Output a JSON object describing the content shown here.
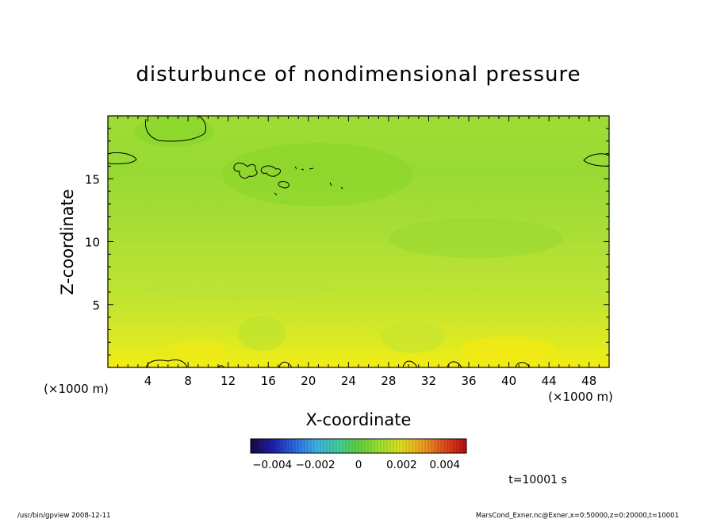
{
  "chart_data": {
    "type": "heatmap",
    "title": "disturbunce of nondimensional pressure",
    "xlabel": "X-coordinate",
    "ylabel": "Z-coordinate",
    "x_unit_left": "(×1000 m)",
    "x_unit_right": "(×1000 m)",
    "xlim": [
      0,
      50
    ],
    "ylim": [
      0,
      20
    ],
    "x_ticks": [
      4,
      8,
      12,
      16,
      20,
      24,
      28,
      32,
      36,
      40,
      44,
      48
    ],
    "y_ticks": [
      5,
      10,
      15
    ],
    "colorbar": {
      "min": -0.005,
      "max": 0.005,
      "tick_values": [
        -0.004,
        -0.002,
        0,
        0.002,
        0.004
      ],
      "tick_labels": [
        "−0.004",
        "−0.002",
        "0",
        "0.002",
        "0.004"
      ]
    },
    "field": {
      "value_range": [
        0.0005,
        0.0035
      ],
      "bottom_value": 0.0033,
      "top_value": 0.0013
    }
  },
  "annotations": {
    "time_label": "t=10001 s"
  },
  "footer": {
    "left": "/usr/bin/gpview   2008-12-11",
    "right": "MarsCond_Exner.nc@Exner,x=0:50000,z=0:20000,t=10001"
  },
  "colors": {
    "axis": "#000000",
    "background": "#ffffff",
    "colormap": [
      "#1a0a4a",
      "#2020b0",
      "#2a6ae0",
      "#40b0e8",
      "#40d0a0",
      "#60d040",
      "#a0e030",
      "#e0e020",
      "#f0a020",
      "#e05020",
      "#c01010"
    ]
  }
}
